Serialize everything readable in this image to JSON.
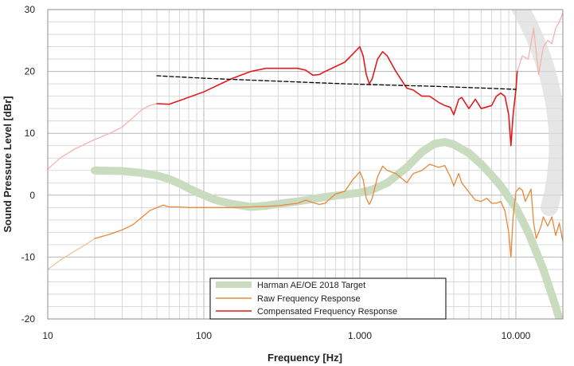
{
  "chart_data": {
    "type": "line",
    "x_scale": "log",
    "xlim": [
      10,
      20000
    ],
    "ylim": [
      -20,
      30
    ],
    "xlabel": "Frequency [Hz]",
    "ylabel": "Sound Pressure Level [dBr]",
    "x_ticks": [
      {
        "value": 10,
        "label": "10"
      },
      {
        "value": 100,
        "label": "100"
      },
      {
        "value": 1000,
        "label": "1.000"
      },
      {
        "value": 10000,
        "label": "10.000"
      }
    ],
    "y_ticks": [
      {
        "value": 30,
        "label": "30"
      },
      {
        "value": 20,
        "label": "20"
      },
      {
        "value": 10,
        "label": "10"
      },
      {
        "value": 0,
        "label": "0"
      },
      {
        "value": -10,
        "label": "-10"
      },
      {
        "value": -20,
        "label": "-20"
      }
    ],
    "grid": true,
    "legend_position": "bottom-center",
    "colors": {
      "target": "#c9dcc0",
      "raw": "#e8883a",
      "compensated": "#e31a1c",
      "compensated_faded": "#f4b3aa",
      "raw_faded": "#f2c0a0",
      "smoothed": "#000000",
      "grid": "#d0d0d0",
      "gray_arc": "#dcdcdc"
    },
    "series": [
      {
        "name": "Harman AE/OE 2018 Target",
        "key": "target",
        "legend": true,
        "points": [
          [
            20,
            4.0
          ],
          [
            30,
            3.9
          ],
          [
            40,
            3.6
          ],
          [
            50,
            3.2
          ],
          [
            60,
            2.6
          ],
          [
            70,
            1.9
          ],
          [
            80,
            1.1
          ],
          [
            100,
            0.0
          ],
          [
            120,
            -0.8
          ],
          [
            150,
            -1.4
          ],
          [
            200,
            -1.9
          ],
          [
            250,
            -1.7
          ],
          [
            300,
            -1.4
          ],
          [
            400,
            -1.0
          ],
          [
            500,
            -0.6
          ],
          [
            600,
            -0.3
          ],
          [
            800,
            0.1
          ],
          [
            1000,
            0.4
          ],
          [
            1200,
            0.9
          ],
          [
            1500,
            2.0
          ],
          [
            2000,
            4.5
          ],
          [
            2500,
            7.0
          ],
          [
            3000,
            8.3
          ],
          [
            3500,
            8.6
          ],
          [
            4000,
            8.2
          ],
          [
            5000,
            6.8
          ],
          [
            6000,
            5.0
          ],
          [
            7000,
            3.2
          ],
          [
            8000,
            1.5
          ],
          [
            10000,
            -2.0
          ],
          [
            12000,
            -6.0
          ],
          [
            15000,
            -12.0
          ],
          [
            18000,
            -18.0
          ],
          [
            20000,
            -22.0
          ]
        ]
      },
      {
        "name": "Raw Frequency Response",
        "key": "raw",
        "legend": true,
        "points": [
          [
            20,
            -7.0
          ],
          [
            25,
            -6.3
          ],
          [
            30,
            -5.6
          ],
          [
            35,
            -4.8
          ],
          [
            40,
            -3.6
          ],
          [
            45,
            -2.5
          ],
          [
            50,
            -2.0
          ],
          [
            55,
            -1.6
          ],
          [
            60,
            -1.9
          ],
          [
            70,
            -1.9
          ],
          [
            80,
            -2.0
          ],
          [
            100,
            -2.0
          ],
          [
            150,
            -2.0
          ],
          [
            200,
            -1.9
          ],
          [
            250,
            -1.8
          ],
          [
            300,
            -1.7
          ],
          [
            400,
            -1.3
          ],
          [
            450,
            -0.8
          ],
          [
            500,
            -1.2
          ],
          [
            550,
            -1.5
          ],
          [
            600,
            -1.3
          ],
          [
            650,
            -0.5
          ],
          [
            700,
            0.2
          ],
          [
            800,
            0.6
          ],
          [
            900,
            2.5
          ],
          [
            1000,
            3.8
          ],
          [
            1050,
            2.5
          ],
          [
            1100,
            -0.5
          ],
          [
            1150,
            -1.5
          ],
          [
            1200,
            -0.5
          ],
          [
            1300,
            3.0
          ],
          [
            1400,
            4.7
          ],
          [
            1500,
            4.0
          ],
          [
            1700,
            3.5
          ],
          [
            1900,
            2.5
          ],
          [
            2000,
            2.0
          ],
          [
            2200,
            3.5
          ],
          [
            2500,
            4.0
          ],
          [
            2800,
            5.0
          ],
          [
            3200,
            4.5
          ],
          [
            3500,
            4.8
          ],
          [
            3800,
            3.0
          ],
          [
            4000,
            1.5
          ],
          [
            4300,
            3.5
          ],
          [
            4500,
            2.0
          ],
          [
            5000,
            0.5
          ],
          [
            5500,
            -0.8
          ],
          [
            6000,
            -1.0
          ],
          [
            6500,
            -0.5
          ],
          [
            7000,
            -1.3
          ],
          [
            7500,
            -1.3
          ],
          [
            8000,
            -1.0
          ],
          [
            8500,
            -2.5
          ],
          [
            9000,
            -6.0
          ],
          [
            9300,
            -10.0
          ],
          [
            9600,
            -3.5
          ],
          [
            10000,
            0.5
          ],
          [
            10500,
            1.2
          ],
          [
            11000,
            0.8
          ],
          [
            11500,
            -1.0
          ],
          [
            12500,
            1.0
          ],
          [
            13000,
            -4.5
          ],
          [
            13500,
            -7.0
          ],
          [
            14500,
            -5.0
          ],
          [
            15000,
            -3.5
          ],
          [
            16000,
            -5.0
          ],
          [
            17000,
            -3.5
          ],
          [
            18000,
            -6.5
          ],
          [
            19000,
            -4.5
          ],
          [
            20000,
            -7.5
          ]
        ]
      },
      {
        "name": "Compensated Frequency Response",
        "key": "compensated",
        "legend": true,
        "points": [
          [
            50,
            14.8
          ],
          [
            60,
            14.7
          ],
          [
            70,
            15.3
          ],
          [
            100,
            16.7
          ],
          [
            150,
            18.8
          ],
          [
            200,
            20.0
          ],
          [
            250,
            20.5
          ],
          [
            300,
            20.5
          ],
          [
            400,
            20.5
          ],
          [
            450,
            20.2
          ],
          [
            500,
            19.4
          ],
          [
            550,
            19.5
          ],
          [
            600,
            20.0
          ],
          [
            700,
            20.8
          ],
          [
            800,
            21.5
          ],
          [
            900,
            22.8
          ],
          [
            1000,
            24.0
          ],
          [
            1050,
            22.5
          ],
          [
            1100,
            19.5
          ],
          [
            1150,
            18.0
          ],
          [
            1200,
            18.8
          ],
          [
            1300,
            22.0
          ],
          [
            1400,
            23.2
          ],
          [
            1500,
            22.5
          ],
          [
            1700,
            20.0
          ],
          [
            2000,
            17.3
          ],
          [
            2200,
            17.0
          ],
          [
            2500,
            16.0
          ],
          [
            2800,
            16.0
          ],
          [
            3200,
            15.0
          ],
          [
            3500,
            14.5
          ],
          [
            3800,
            14.2
          ],
          [
            4000,
            13.0
          ],
          [
            4300,
            15.5
          ],
          [
            4500,
            15.8
          ],
          [
            5000,
            14.0
          ],
          [
            5500,
            15.5
          ],
          [
            6000,
            14.0
          ],
          [
            7000,
            14.5
          ],
          [
            7500,
            16.0
          ],
          [
            8000,
            16.5
          ],
          [
            8500,
            16.0
          ],
          [
            9000,
            13.0
          ],
          [
            9300,
            8.0
          ],
          [
            9600,
            13.0
          ],
          [
            10000,
            17.0
          ],
          [
            10200,
            20.0
          ]
        ]
      },
      {
        "name": "Compensated (faded low end)",
        "key": "compensated_faded",
        "legend": false,
        "points": [
          [
            10,
            4.2
          ],
          [
            12,
            6.0
          ],
          [
            15,
            7.5
          ],
          [
            20,
            9.0
          ],
          [
            25,
            10.0
          ],
          [
            30,
            11.0
          ],
          [
            35,
            12.5
          ],
          [
            40,
            13.8
          ],
          [
            45,
            14.5
          ],
          [
            50,
            14.8
          ]
        ]
      },
      {
        "name": "Compensated (faded high end)",
        "key": "compensated_faded",
        "legend": false,
        "points": [
          [
            10200,
            20.0
          ],
          [
            11000,
            22.5
          ],
          [
            12000,
            22.0
          ],
          [
            13000,
            27.0
          ],
          [
            14000,
            19.5
          ],
          [
            15000,
            24.0
          ],
          [
            16000,
            25.0
          ],
          [
            17000,
            24.5
          ],
          [
            18000,
            27.0
          ],
          [
            19000,
            28.0
          ],
          [
            20000,
            29.5
          ]
        ]
      },
      {
        "name": "Raw (faded low end)",
        "key": "raw_faded",
        "legend": false,
        "points": [
          [
            10,
            -12.0
          ],
          [
            12,
            -10.5
          ],
          [
            15,
            -9.0
          ],
          [
            18,
            -7.8
          ],
          [
            20,
            -7.0
          ]
        ]
      },
      {
        "name": "Smoothed trend",
        "key": "smoothed",
        "legend": false,
        "dashed": true,
        "points": [
          [
            50,
            19.3
          ],
          [
            100,
            18.9
          ],
          [
            200,
            18.6
          ],
          [
            400,
            18.3
          ],
          [
            800,
            18.0
          ],
          [
            1500,
            17.8
          ],
          [
            3000,
            17.6
          ],
          [
            5000,
            17.4
          ],
          [
            8000,
            17.2
          ],
          [
            10000,
            17.1
          ]
        ]
      }
    ]
  }
}
